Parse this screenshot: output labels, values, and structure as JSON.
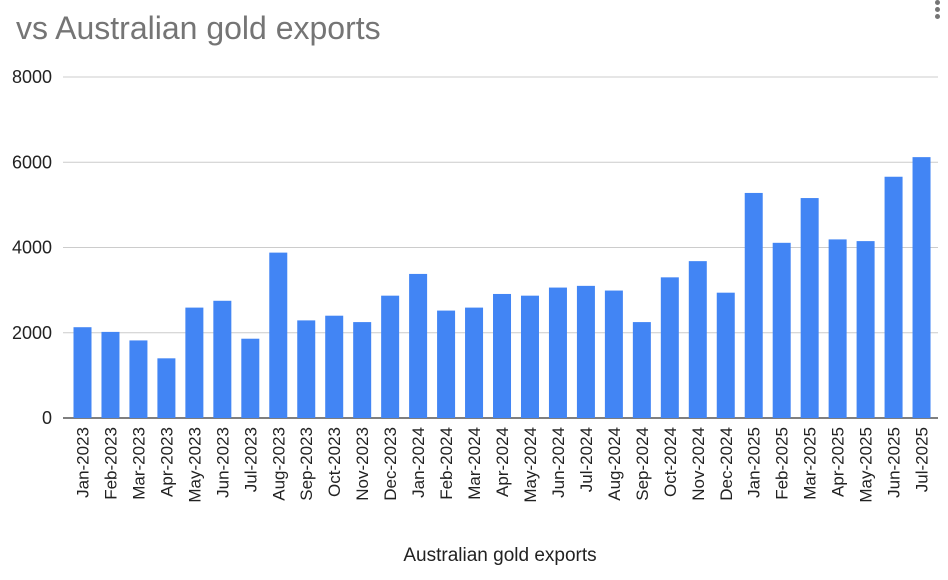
{
  "header": {
    "title": "vs Australian gold exports",
    "menu_icon": "more-vert-icon"
  },
  "chart_data": {
    "type": "bar",
    "title": "vs Australian gold exports",
    "xlabel": "Australian gold exports",
    "ylabel": "",
    "ylim": [
      0,
      8000
    ],
    "yticks": [
      0,
      2000,
      4000,
      6000,
      8000
    ],
    "grid": true,
    "color": "#4285F4",
    "categories": [
      "Jan-2023",
      "Feb-2023",
      "Mar-2023",
      "Apr-2023",
      "May-2023",
      "Jun-2023",
      "Jul-2023",
      "Aug-2023",
      "Sep-2023",
      "Oct-2023",
      "Nov-2023",
      "Dec-2023",
      "Jan-2024",
      "Feb-2024",
      "Mar-2024",
      "Apr-2024",
      "May-2024",
      "Jun-2024",
      "Jul-2024",
      "Aug-2024",
      "Sep-2024",
      "Oct-2024",
      "Nov-2024",
      "Dec-2024",
      "Jan-2025",
      "Feb-2025",
      "Mar-2025",
      "Apr-2025",
      "May-2025",
      "Jun-2025",
      "Jul-2025"
    ],
    "values": [
      2130,
      2020,
      1820,
      1400,
      2590,
      2750,
      1860,
      3880,
      2290,
      2400,
      2250,
      2870,
      3380,
      2520,
      2590,
      2910,
      2870,
      3060,
      3100,
      2990,
      2250,
      3300,
      3680,
      2940,
      5280,
      4110,
      5160,
      4190,
      4150,
      5660,
      6120
    ]
  }
}
